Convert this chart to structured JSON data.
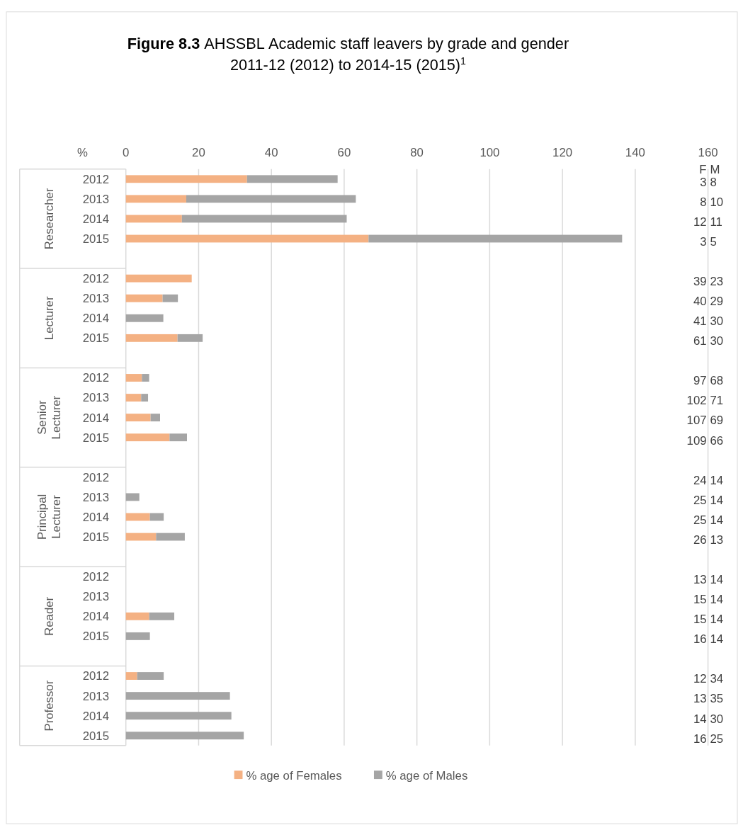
{
  "chart_data": {
    "type": "bar",
    "orientation": "horizontal",
    "stacked": true,
    "title": "Figure 8.3 AHSSBL  Academic staff leavers by grade and gender",
    "subtitle": "2011-12 (2012) to 2014-15 (2015)$^{1}$",
    "xlabel": "%",
    "categories": [
      "2012",
      "2013",
      "2014",
      "2015",
      null,
      "2012",
      "2013",
      "2014",
      "2015",
      null,
      "2012",
      "2013",
      "2014",
      "2015",
      null,
      "2012",
      "2013",
      "2014",
      "2015",
      null,
      "2012",
      "2013",
      "2014",
      "2015",
      null,
      "2012",
      "2013",
      "2014",
      "2015"
    ],
    "series": [
      {
        "name": "% age of Females",
        "color": "#f4b183",
        "values": [
          33.3,
          16.6,
          15.4,
          66.7,
          null,
          18.1,
          10.1,
          0,
          14.2,
          null,
          4.4,
          4.2,
          6.8,
          12.0,
          null,
          0,
          0,
          6.6,
          8.3,
          null,
          0,
          0,
          6.4,
          0,
          null,
          3.1,
          0,
          0,
          0
        ]
      },
      {
        "name": "% age of Males",
        "color": "#a5a5a5",
        "values": [
          24.9,
          46.6,
          45.3,
          69.7,
          null,
          0,
          4.2,
          10.3,
          6.9,
          null,
          2.0,
          1.9,
          2.6,
          4.8,
          null,
          0,
          3.7,
          3.8,
          7.9,
          null,
          0,
          0,
          6.9,
          6.6,
          null,
          7.3,
          28.6,
          29.0,
          32.4
        ]
      }
    ],
    "xlim": [
      0,
      160
    ],
    "xticks": [
      0,
      20,
      40,
      60,
      80,
      100,
      120,
      140,
      160
    ],
    "grid": "x",
    "legend": "bottom",
    "annotations": [
      "Researcher",
      "Lecturer",
      "Senior Lecturer",
      "Principal Lecturer",
      "Reader",
      "Professor",
      "F M",
      "3 8",
      "8 10",
      "12 11",
      "3 5",
      "39 23",
      "40 29",
      "41 30",
      "61 30",
      "97 68",
      "102 71",
      "107 69",
      "109 66",
      "24 14",
      "25 14",
      "25 14",
      "26 13",
      "13 14",
      "15 14",
      "15 14",
      "16 14",
      "12 34",
      "13 35",
      "14 30",
      "16 25"
    ]
  }
}
